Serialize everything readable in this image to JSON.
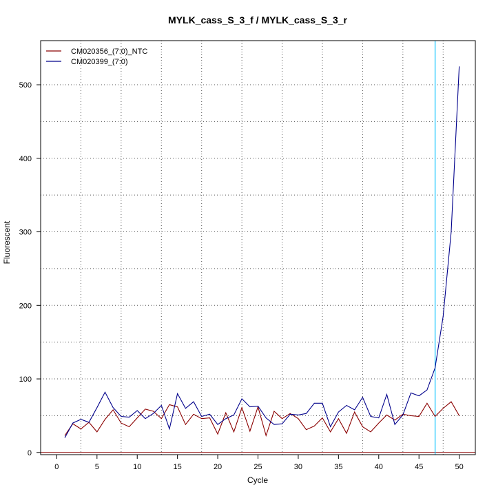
{
  "chart_data": {
    "type": "line",
    "title": "MYLK_cass_S_3_f / MYLK_cass_S_3_r",
    "xlabel": "Cycle",
    "ylabel": "Fluorescent",
    "xlim": [
      -2,
      52
    ],
    "ylim": [
      0,
      550
    ],
    "x_ticks": [
      0,
      5,
      10,
      15,
      20,
      25,
      30,
      35,
      40,
      45,
      50
    ],
    "y_ticks": [
      0,
      100,
      200,
      300,
      400,
      500
    ],
    "x_grid": [
      3,
      8,
      13,
      18,
      23,
      28,
      33,
      38,
      43,
      48
    ],
    "y_grid": [
      50,
      100,
      150,
      200,
      250,
      300,
      350,
      400,
      450,
      500
    ],
    "grid": true,
    "legend_position": "top-left",
    "threshold_x": 47,
    "threshold_color": "#00bfff",
    "baseline_color": "#8b0000",
    "x": [
      1,
      2,
      3,
      4,
      5,
      6,
      7,
      8,
      9,
      10,
      11,
      12,
      13,
      14,
      15,
      16,
      17,
      18,
      19,
      20,
      21,
      22,
      23,
      24,
      25,
      26,
      27,
      28,
      29,
      30,
      31,
      32,
      33,
      34,
      35,
      36,
      37,
      38,
      39,
      40,
      41,
      42,
      43,
      44,
      45,
      46,
      47,
      48,
      49,
      50
    ],
    "series": [
      {
        "name": "CM020356_(7:0)_NTC",
        "color": "#8b0000",
        "values": [
          23,
          39,
          32,
          41,
          28,
          45,
          58,
          40,
          35,
          47,
          59,
          56,
          46,
          65,
          62,
          38,
          52,
          46,
          47,
          25,
          54,
          28,
          61,
          29,
          62,
          23,
          56,
          46,
          53,
          46,
          31,
          36,
          47,
          28,
          46,
          26,
          55,
          35,
          28,
          40,
          51,
          44,
          52,
          50,
          49,
          67,
          49,
          60,
          69,
          50
        ]
      },
      {
        "name": "CM020399_(7:0)",
        "color": "#00008b",
        "values": [
          20,
          40,
          45,
          41,
          61,
          82,
          61,
          49,
          48,
          57,
          46,
          53,
          64,
          32,
          80,
          60,
          69,
          49,
          52,
          38,
          46,
          51,
          73,
          62,
          63,
          47,
          38,
          39,
          52,
          51,
          53,
          67,
          67,
          35,
          55,
          64,
          58,
          75,
          49,
          47,
          79,
          38,
          51,
          81,
          77,
          85,
          115,
          185,
          300,
          525
        ]
      }
    ]
  }
}
